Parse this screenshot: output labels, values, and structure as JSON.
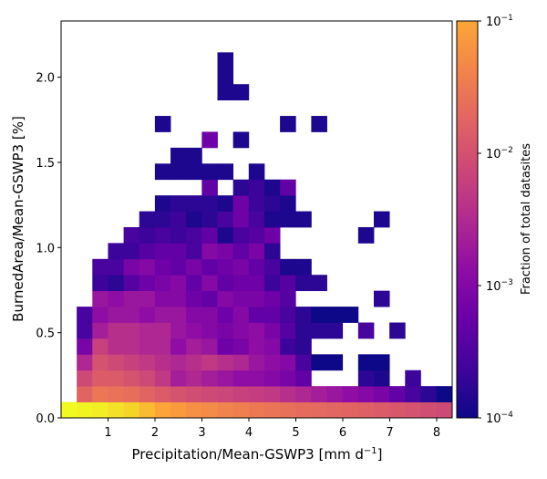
{
  "chart_data": {
    "type": "heatmap",
    "title": "",
    "xlabel": "Precipitation/Mean-GSWP3 [mm d$^{-1}$]",
    "xlabel_main": "Precipitation/Mean-GSWP3 [mm d",
    "xlabel_sup": "−1",
    "xlabel_end": "]",
    "ylabel": "BurnedArea/Mean-GSWP3 [%]",
    "xlim": [
      0,
      8.33
    ],
    "ylim": [
      0,
      2.33
    ],
    "x_ticks": [
      1,
      2,
      3,
      4,
      5,
      6,
      7,
      8
    ],
    "y_ticks": [
      0.0,
      0.5,
      1.0,
      1.5,
      2.0
    ],
    "x_tick_labels": [
      "1",
      "2",
      "3",
      "4",
      "5",
      "6",
      "7",
      "8"
    ],
    "y_tick_labels": [
      "0.0",
      "0.5",
      "1.0",
      "1.5",
      "2.0"
    ],
    "bin_width_x": 0.333,
    "bin_height_y": 0.0933,
    "colormap": "plasma",
    "colorbar": {
      "label": "Fraction of total datasites",
      "scale": "log",
      "range": [
        0.0001,
        0.1
      ],
      "tick_labels": [
        {
          "base": "10",
          "exp": "−1",
          "value": 0.1
        },
        {
          "base": "10",
          "exp": "−2",
          "value": 0.01
        },
        {
          "base": "10",
          "exp": "−3",
          "value": 0.001
        },
        {
          "base": "10",
          "exp": "−4",
          "value": 0.0001
        }
      ]
    },
    "log10_fraction_rows_from_bottom": [
      [
        -1.0,
        -1.02,
        -1.05,
        -1.1,
        -1.15,
        -1.25,
        -1.35,
        -1.45,
        -1.55,
        -1.6,
        -1.68,
        -1.72,
        -1.78,
        -1.82,
        -1.88,
        -1.92,
        -1.95,
        -1.98,
        -2.0,
        -2.05,
        -2.1,
        -2.15,
        -2.2,
        -2.25,
        -2.3
      ],
      [
        null,
        -2.0,
        -1.8,
        -1.85,
        -1.9,
        -2.0,
        -2.1,
        -2.2,
        -2.25,
        -2.3,
        -2.35,
        -2.4,
        -2.45,
        -2.5,
        -2.6,
        -2.7,
        -2.8,
        -2.9,
        -3.0,
        -3.1,
        -3.2,
        -3.4,
        -3.6,
        -3.8,
        -4.0
      ],
      [
        null,
        -2.3,
        -2.1,
        -2.1,
        -2.2,
        -2.3,
        -2.5,
        -2.8,
        -2.7,
        -2.8,
        -2.9,
        -3.0,
        -3.0,
        -3.1,
        -3.2,
        -3.4,
        null,
        null,
        null,
        -3.8,
        -3.9,
        null,
        -3.7,
        null,
        null
      ],
      [
        null,
        -2.7,
        -2.2,
        -2.3,
        -2.4,
        -2.5,
        -2.6,
        -2.7,
        -2.6,
        -2.5,
        -2.6,
        -2.7,
        -2.9,
        -3.0,
        -3.1,
        -3.6,
        -4.0,
        -4.0,
        null,
        -4.0,
        -4.0,
        null,
        null,
        null,
        null
      ],
      [
        null,
        -3.2,
        -2.4,
        -2.6,
        -2.6,
        -2.7,
        -2.7,
        -3.0,
        -2.8,
        -2.9,
        -3.3,
        -3.2,
        -3.0,
        -3.1,
        -3.7,
        -3.8,
        null,
        null,
        null,
        null,
        null,
        null,
        null,
        null,
        null
      ],
      [
        null,
        -3.6,
        -2.8,
        -2.6,
        -2.6,
        -2.7,
        -2.7,
        -2.9,
        -3.0,
        -3.1,
        -3.2,
        -3.1,
        -3.0,
        -3.2,
        -3.5,
        -3.8,
        -3.8,
        -3.8,
        null,
        -3.6,
        null,
        -3.8,
        null,
        null,
        null
      ],
      [
        null,
        -3.6,
        -3.0,
        -2.9,
        -2.9,
        -3.0,
        -2.9,
        -2.9,
        -3.1,
        -3.1,
        -3.3,
        -3.1,
        -3.4,
        -3.4,
        -3.6,
        -3.8,
        -4.0,
        -4.0,
        -4.0,
        null,
        null,
        null,
        null,
        null,
        null
      ],
      [
        null,
        null,
        -2.9,
        -3.0,
        -2.9,
        -2.9,
        -3.1,
        -3.1,
        -3.3,
        -3.4,
        -3.1,
        -3.2,
        -3.2,
        -3.3,
        -3.5,
        null,
        null,
        null,
        null,
        null,
        -3.8,
        null,
        null,
        null,
        null
      ],
      [
        null,
        null,
        -3.7,
        -3.8,
        -3.5,
        -3.3,
        -3.2,
        -3.1,
        -3.4,
        -3.1,
        -3.4,
        -3.3,
        -3.3,
        -3.7,
        -3.5,
        -3.8,
        -3.8,
        null,
        null,
        null,
        null,
        null,
        null,
        null,
        null
      ],
      [
        null,
        null,
        -3.6,
        -3.6,
        -3.2,
        -3.1,
        -3.3,
        -3.4,
        -3.2,
        -3.4,
        -3.3,
        -3.2,
        -3.4,
        -3.6,
        -3.9,
        -3.9,
        null,
        null,
        null,
        null,
        null,
        null,
        null,
        null,
        null
      ],
      [
        null,
        null,
        null,
        -3.7,
        -3.7,
        -3.5,
        -3.4,
        -3.4,
        -3.6,
        -3.1,
        -3.2,
        -3.4,
        -3.2,
        -3.8,
        null,
        null,
        null,
        null,
        null,
        null,
        null,
        null,
        null,
        null,
        null
      ],
      [
        null,
        null,
        null,
        null,
        -3.6,
        -3.7,
        -3.6,
        -3.7,
        -3.6,
        -3.4,
        -3.9,
        -3.6,
        -3.5,
        -3.3,
        null,
        null,
        null,
        null,
        null,
        -3.9,
        null,
        null,
        null,
        null,
        null
      ],
      [
        null,
        null,
        null,
        null,
        null,
        -3.8,
        -3.8,
        -3.7,
        -3.9,
        -3.8,
        -3.6,
        -3.3,
        -3.6,
        -3.9,
        -3.9,
        -3.9,
        null,
        null,
        null,
        null,
        -3.9,
        null,
        null,
        null,
        null
      ],
      [
        null,
        null,
        null,
        null,
        null,
        null,
        -3.9,
        -3.8,
        -3.8,
        -3.8,
        -3.9,
        -3.3,
        -3.7,
        -3.8,
        -3.9,
        null,
        null,
        null,
        null,
        null,
        null,
        null,
        null,
        null,
        null
      ],
      [
        null,
        null,
        null,
        null,
        null,
        null,
        null,
        null,
        null,
        -3.4,
        null,
        -3.8,
        -3.7,
        -3.9,
        -3.4,
        null,
        null,
        null,
        null,
        null,
        null,
        null,
        null,
        null,
        null
      ],
      [
        null,
        null,
        null,
        null,
        null,
        null,
        -3.9,
        -3.9,
        -3.9,
        -3.9,
        -3.9,
        null,
        -3.9,
        null,
        null,
        null,
        null,
        null,
        null,
        null,
        null,
        null,
        null,
        null,
        null
      ],
      [
        null,
        null,
        null,
        null,
        null,
        null,
        null,
        -3.9,
        -3.9,
        null,
        null,
        null,
        null,
        null,
        null,
        null,
        null,
        null,
        null,
        null,
        null,
        null,
        null,
        null,
        null
      ],
      [
        null,
        null,
        null,
        null,
        null,
        null,
        null,
        null,
        null,
        -3.3,
        null,
        -3.9,
        null,
        null,
        null,
        null,
        null,
        null,
        null,
        null,
        null,
        null,
        null,
        null,
        null
      ],
      [
        null,
        null,
        null,
        null,
        null,
        null,
        -3.9,
        null,
        null,
        null,
        null,
        null,
        null,
        null,
        -3.9,
        null,
        -3.9,
        null,
        null,
        null,
        null,
        null,
        null,
        null,
        null
      ],
      [
        null,
        null,
        null,
        null,
        null,
        null,
        null,
        null,
        null,
        null,
        null,
        null,
        null,
        null,
        null,
        null,
        null,
        null,
        null,
        null,
        null,
        null,
        null,
        null,
        null
      ],
      [
        null,
        null,
        null,
        null,
        null,
        null,
        null,
        null,
        null,
        null,
        -3.9,
        -3.9,
        null,
        null,
        null,
        null,
        null,
        null,
        null,
        null,
        null,
        null,
        null,
        null,
        null
      ],
      [
        null,
        null,
        null,
        null,
        null,
        null,
        null,
        null,
        null,
        null,
        -3.9,
        null,
        null,
        null,
        null,
        null,
        null,
        null,
        null,
        null,
        null,
        null,
        null,
        null,
        null
      ],
      [
        null,
        null,
        null,
        null,
        null,
        null,
        null,
        null,
        null,
        null,
        -3.9,
        null,
        null,
        null,
        null,
        null,
        null,
        null,
        null,
        null,
        null,
        null,
        null,
        null,
        null
      ]
    ]
  }
}
